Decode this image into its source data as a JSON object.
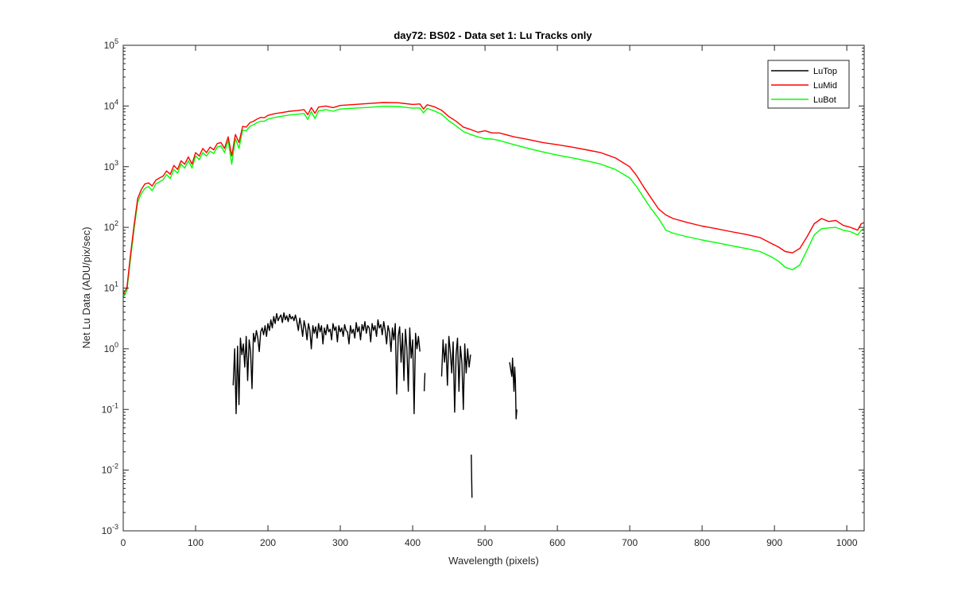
{
  "chart_data": {
    "type": "line",
    "title": "day72: BS02 - Data set 1: Lu Tracks only",
    "xlabel": "Wavelength (pixels)",
    "ylabel": "Net Lu Data (ADU/pix/sec)",
    "xlim": [
      0,
      1024
    ],
    "ylim": [
      0.001,
      100000
    ],
    "yscale": "log",
    "xticks": [
      0,
      100,
      200,
      300,
      400,
      500,
      600,
      700,
      800,
      900,
      1000
    ],
    "xtick_labels": [
      "0",
      "100",
      "200",
      "300",
      "400",
      "500",
      "600",
      "700",
      "800",
      "900",
      "1000"
    ],
    "ytick_exponents": [
      -3,
      -2,
      -1,
      0,
      1,
      2,
      3,
      4,
      5
    ],
    "ytick_labels": [
      {
        "base": "10",
        "exp": "-3"
      },
      {
        "base": "10",
        "exp": "-2"
      },
      {
        "base": "10",
        "exp": "-1"
      },
      {
        "base": "10",
        "exp": "0"
      },
      {
        "base": "10",
        "exp": "1"
      },
      {
        "base": "10",
        "exp": "2"
      },
      {
        "base": "10",
        "exp": "3"
      },
      {
        "base": "10",
        "exp": "4"
      },
      {
        "base": "10",
        "exp": "5"
      }
    ],
    "grid": false,
    "legend_position": "top-right",
    "series": [
      {
        "name": "LuTop",
        "color": "#000000",
        "segments": [
          {
            "x": [
              152,
              154,
              156,
              158,
              160,
              162,
              164,
              166,
              168,
              170,
              172,
              174,
              176,
              178,
              180,
              182,
              184,
              186,
              188,
              190,
              192,
              194,
              196,
              198,
              200,
              202,
              204,
              206,
              208,
              210,
              212,
              214,
              216,
              218,
              220,
              222,
              224,
              226,
              228,
              230,
              232,
              234,
              236,
              238,
              240,
              242,
              244,
              246,
              248,
              250,
              252,
              254,
              256,
              258,
              260,
              262,
              264,
              266,
              268,
              270,
              272,
              274,
              276,
              278,
              280,
              282,
              284,
              286,
              288,
              290,
              292,
              294,
              296,
              298,
              300,
              302,
              304,
              306,
              308,
              310,
              312,
              314,
              316,
              318,
              320,
              322,
              324,
              326,
              328,
              330,
              332,
              334,
              336,
              338,
              340,
              342,
              344,
              346,
              348,
              350,
              352,
              354,
              356,
              358,
              360,
              362,
              364,
              366,
              368,
              370,
              372,
              374,
              376,
              378,
              380,
              382,
              384,
              386,
              388,
              390,
              392,
              394,
              396,
              398,
              400,
              402,
              404,
              406,
              408,
              410
            ],
            "y": [
              0.25,
              1.0,
              0.085,
              1.1,
              0.12,
              1.5,
              0.8,
              1.2,
              0.5,
              1.6,
              0.3,
              1.4,
              0.9,
              0.22,
              1.8,
              1.3,
              2.0,
              1.5,
              0.9,
              1.9,
              2.2,
              1.7,
              2.4,
              1.6,
              2.6,
              2.0,
              3.0,
              2.2,
              3.4,
              2.6,
              3.8,
              2.9,
              3.3,
              3.6,
              2.7,
              3.9,
              3.0,
              3.5,
              2.8,
              3.7,
              3.1,
              3.4,
              2.9,
              3.6,
              2.8,
              2.0,
              3.2,
              2.4,
              1.6,
              2.9,
              2.2,
              1.4,
              2.6,
              2.0,
              1.0,
              2.4,
              1.8,
              2.3,
              1.5,
              2.6,
              1.9,
              2.4,
              1.2,
              2.2,
              1.7,
              2.5,
              1.9,
              2.1,
              1.4,
              2.6,
              2.0,
              2.3,
              1.3,
              2.4,
              1.9,
              2.2,
              1.6,
              2.5,
              2.0,
              1.9,
              1.2,
              2.4,
              1.8,
              2.1,
              1.5,
              2.7,
              1.9,
              2.3,
              1.4,
              2.5,
              2.0,
              2.8,
              1.8,
              2.4,
              2.2,
              1.3,
              2.6,
              2.0,
              2.4,
              1.6,
              3.0,
              2.2,
              2.5,
              1.7,
              2.8,
              2.0,
              1.2,
              2.4,
              1.9,
              0.9,
              2.2,
              1.4,
              2.6,
              0.18,
              1.6,
              2.3,
              0.6,
              1.8,
              0.3,
              2.1,
              1.0,
              0.2,
              2.2,
              0.7,
              1.4,
              0.085,
              1.8,
              1.0,
              1.6,
              0.9
            ]
          },
          {
            "x": [
              416,
              417
            ],
            "y": [
              0.2,
              0.4
            ]
          },
          {
            "x": [
              440,
              442,
              444,
              446,
              448,
              450,
              452,
              454,
              456,
              458,
              460,
              462,
              464,
              466,
              468,
              470,
              472,
              474,
              476,
              478,
              480
            ],
            "y": [
              0.35,
              1.4,
              0.6,
              1.2,
              0.25,
              1.6,
              0.9,
              0.4,
              1.3,
              0.09,
              0.8,
              1.5,
              0.2,
              1.1,
              0.6,
              0.1,
              1.2,
              0.4,
              1.0,
              0.5,
              0.8
            ]
          },
          {
            "x": [
              481,
              482
            ],
            "y": [
              0.018,
              0.0035
            ]
          },
          {
            "x": [
              534,
              537,
              538,
              540,
              541,
              542,
              543,
              544
            ],
            "y": [
              0.6,
              0.35,
              0.7,
              0.2,
              0.5,
              0.3,
              0.07,
              0.1
            ]
          }
        ]
      },
      {
        "name": "LuMid",
        "color": "#ff0000",
        "x": [
          0,
          5,
          10,
          15,
          20,
          25,
          30,
          35,
          40,
          45,
          50,
          55,
          60,
          65,
          70,
          75,
          80,
          85,
          90,
          95,
          100,
          105,
          110,
          115,
          120,
          125,
          130,
          135,
          140,
          145,
          150,
          155,
          160,
          165,
          170,
          175,
          180,
          185,
          190,
          195,
          200,
          210,
          220,
          230,
          240,
          250,
          255,
          260,
          265,
          270,
          280,
          290,
          300,
          320,
          340,
          360,
          380,
          400,
          410,
          415,
          420,
          430,
          440,
          450,
          460,
          470,
          480,
          490,
          500,
          510,
          520,
          540,
          560,
          580,
          600,
          620,
          640,
          660,
          680,
          700,
          710,
          720,
          730,
          740,
          750,
          760,
          780,
          800,
          820,
          840,
          860,
          880,
          895,
          905,
          915,
          925,
          935,
          945,
          955,
          965,
          975,
          985,
          995,
          1005,
          1010,
          1015,
          1020,
          1024
        ],
        "y": [
          8,
          10,
          35,
          110,
          300,
          420,
          520,
          540,
          480,
          600,
          650,
          700,
          850,
          750,
          1050,
          900,
          1250,
          1100,
          1450,
          1100,
          1700,
          1500,
          2000,
          1700,
          2100,
          1900,
          2400,
          2500,
          2000,
          3100,
          1500,
          3400,
          2500,
          4600,
          4500,
          5300,
          5600,
          6100,
          6500,
          6400,
          7000,
          7500,
          7800,
          8200,
          8400,
          8700,
          7200,
          9400,
          7600,
          9600,
          10000,
          9400,
          10200,
          10600,
          11000,
          11400,
          11300,
          10600,
          10800,
          8900,
          10500,
          9700,
          8500,
          6700,
          5600,
          4500,
          4100,
          3700,
          3900,
          3600,
          3600,
          3100,
          2800,
          2500,
          2300,
          2100,
          1900,
          1700,
          1400,
          1000,
          700,
          450,
          300,
          200,
          160,
          140,
          120,
          105,
          95,
          85,
          77,
          68,
          55,
          48,
          40,
          38,
          45,
          70,
          115,
          140,
          125,
          130,
          108,
          100,
          95,
          90,
          115,
          120
        ]
      },
      {
        "name": "LuBot",
        "color": "#00ff00",
        "x": [
          0,
          5,
          10,
          15,
          20,
          25,
          30,
          35,
          40,
          45,
          50,
          55,
          60,
          65,
          70,
          75,
          80,
          85,
          90,
          95,
          100,
          105,
          110,
          115,
          120,
          125,
          130,
          135,
          140,
          145,
          150,
          155,
          160,
          165,
          170,
          175,
          180,
          185,
          190,
          195,
          200,
          210,
          220,
          230,
          240,
          250,
          255,
          260,
          265,
          270,
          280,
          290,
          300,
          320,
          340,
          360,
          380,
          400,
          410,
          415,
          420,
          430,
          440,
          450,
          460,
          470,
          480,
          490,
          500,
          510,
          520,
          540,
          560,
          580,
          600,
          620,
          640,
          660,
          680,
          700,
          710,
          720,
          730,
          740,
          750,
          760,
          780,
          800,
          820,
          840,
          860,
          880,
          895,
          905,
          915,
          925,
          935,
          945,
          955,
          965,
          975,
          985,
          995,
          1005,
          1010,
          1015,
          1020,
          1024
        ],
        "y": [
          7,
          9,
          30,
          95,
          260,
          360,
          440,
          470,
          400,
          520,
          560,
          610,
          740,
          640,
          900,
          780,
          1100,
          950,
          1250,
          950,
          1500,
          1300,
          1700,
          1500,
          1800,
          1650,
          2100,
          2200,
          1700,
          2700,
          1100,
          2900,
          2000,
          4000,
          3900,
          4600,
          4900,
          5300,
          5600,
          5600,
          6100,
          6500,
          6800,
          7100,
          7300,
          7500,
          6000,
          8100,
          6200,
          8300,
          8700,
          8200,
          8900,
          9200,
          9500,
          9900,
          9800,
          9200,
          9300,
          7700,
          9100,
          8300,
          7300,
          5700,
          4700,
          3800,
          3400,
          3100,
          2900,
          2850,
          2700,
          2300,
          2000,
          1750,
          1550,
          1400,
          1250,
          1100,
          900,
          650,
          460,
          300,
          200,
          140,
          90,
          80,
          70,
          62,
          56,
          50,
          45,
          40,
          33,
          28,
          22,
          20,
          24,
          42,
          75,
          95,
          98,
          100,
          90,
          85,
          80,
          75,
          90,
          95
        ]
      }
    ]
  }
}
